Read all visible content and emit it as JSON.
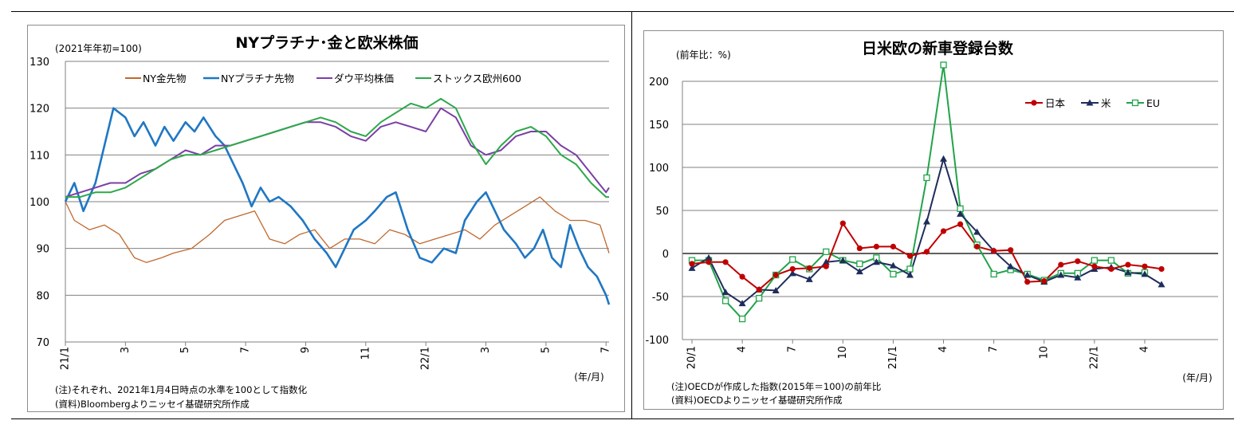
{
  "chart_data": [
    {
      "type": "line",
      "title": "NYプラチナ･金と欧米株価",
      "ylabel": "(2021年年初=100)",
      "xlabel": "(年/月)",
      "ylim": [
        70,
        130
      ],
      "yticks": [
        "130",
        "120",
        "110",
        "100",
        "90",
        "80",
        "70"
      ],
      "xticks": [
        "21/1",
        "3",
        "5",
        "7",
        "9",
        "11",
        "22/1",
        "3",
        "5",
        "7"
      ],
      "grid": true,
      "legend_position": "top",
      "note": "(注)それぞれ、2021年1月4日時点の水準を100として指数化",
      "source": "(資料)Bloombergよりニッセイ基礎研究所作成",
      "series": [
        {
          "name": "NY金先物",
          "color": "#c0692e",
          "x": [
            0,
            0.3,
            0.8,
            1.3,
            1.8,
            2.3,
            2.7,
            3.2,
            3.6,
            4.2,
            4.8,
            5.3,
            5.8,
            6.3,
            6.8,
            7.3,
            7.8,
            8.3,
            8.8,
            9.3,
            9.8,
            10.3,
            10.8,
            11.3,
            11.8,
            12.3,
            12.8,
            13.3,
            13.8,
            14.3,
            14.8,
            15.3,
            15.8,
            16.3,
            16.8,
            17.3,
            17.8,
            18.1
          ],
          "values": [
            100,
            96,
            94,
            95,
            93,
            88,
            87,
            88,
            89,
            90,
            93,
            96,
            97,
            98,
            92,
            91,
            93,
            94,
            90,
            92,
            92,
            91,
            94,
            93,
            91,
            92,
            93,
            94,
            92,
            95,
            97,
            99,
            101,
            98,
            96,
            96,
            95,
            89
          ]
        },
        {
          "name": "NYプラチナ先物",
          "color": "#1f77c4",
          "x": [
            0,
            0.3,
            0.6,
            1.0,
            1.3,
            1.6,
            2.0,
            2.3,
            2.6,
            3.0,
            3.3,
            3.6,
            4.0,
            4.3,
            4.6,
            5.0,
            5.3,
            5.6,
            5.9,
            6.2,
            6.5,
            6.8,
            7.1,
            7.5,
            7.9,
            8.3,
            8.7,
            9.0,
            9.3,
            9.6,
            10.0,
            10.3,
            10.7,
            11.0,
            11.4,
            11.8,
            12.2,
            12.6,
            13.0,
            13.3,
            13.7,
            14.0,
            14.3,
            14.6,
            15.0,
            15.3,
            15.6,
            15.9,
            16.2,
            16.5,
            16.8,
            17.1,
            17.4,
            17.7,
            18.0,
            18.1
          ],
          "values": [
            100,
            104,
            98,
            104,
            112,
            120,
            118,
            114,
            117,
            112,
            116,
            113,
            117,
            115,
            118,
            114,
            112,
            108,
            104,
            99,
            103,
            100,
            101,
            99,
            96,
            92,
            89,
            86,
            90,
            94,
            96,
            98,
            101,
            102,
            94,
            88,
            87,
            90,
            89,
            96,
            100,
            102,
            98,
            94,
            91,
            88,
            90,
            94,
            88,
            86,
            95,
            90,
            86,
            84,
            80,
            78
          ]
        },
        {
          "name": "ダウ平均株価",
          "color": "#7b3fa6",
          "x": [
            0,
            0.5,
            1.0,
            1.5,
            2.0,
            2.5,
            3.0,
            3.5,
            4.0,
            4.5,
            5.0,
            5.5,
            6.0,
            6.5,
            7.0,
            7.5,
            8.0,
            8.5,
            9.0,
            9.5,
            10.0,
            10.5,
            11.0,
            11.5,
            12.0,
            12.5,
            13.0,
            13.5,
            14.0,
            14.5,
            15.0,
            15.5,
            16.0,
            16.5,
            17.0,
            17.5,
            18.0,
            18.1
          ],
          "values": [
            101,
            102,
            103,
            104,
            104,
            106,
            107,
            109,
            111,
            110,
            112,
            112,
            113,
            114,
            115,
            116,
            117,
            117,
            116,
            114,
            113,
            116,
            117,
            116,
            115,
            120,
            118,
            112,
            110,
            111,
            114,
            115,
            115,
            112,
            110,
            106,
            102,
            103
          ]
        },
        {
          "name": "ストックス欧州600",
          "color": "#2ca84a",
          "x": [
            0,
            0.5,
            1.0,
            1.5,
            2.0,
            2.5,
            3.0,
            3.5,
            4.0,
            4.5,
            5.0,
            5.5,
            6.0,
            6.5,
            7.0,
            7.5,
            8.0,
            8.5,
            9.0,
            9.5,
            10.0,
            10.5,
            11.0,
            11.5,
            12.0,
            12.5,
            13.0,
            13.5,
            14.0,
            14.5,
            15.0,
            15.5,
            16.0,
            16.5,
            17.0,
            17.5,
            18.0,
            18.1
          ],
          "values": [
            101,
            101,
            102,
            102,
            103,
            105,
            107,
            109,
            110,
            110,
            111,
            112,
            113,
            114,
            115,
            116,
            117,
            118,
            117,
            115,
            114,
            117,
            119,
            121,
            120,
            122,
            120,
            113,
            108,
            112,
            115,
            116,
            114,
            110,
            108,
            104,
            101,
            101
          ]
        }
      ]
    },
    {
      "type": "line",
      "title": "日米欧の新車登録台数",
      "ylabel": "(前年比：%)",
      "xlabel": "(年/月)",
      "ylim": [
        -100,
        200
      ],
      "yticks": [
        "200",
        "150",
        "100",
        "50",
        "0",
        "-50",
        "-100"
      ],
      "xticks": [
        "20/1",
        "4",
        "7",
        "10",
        "21/1",
        "4",
        "7",
        "10",
        "22/1",
        "4"
      ],
      "grid": true,
      "legend_position": "top-right",
      "note": "(注)OECDが作成した指数(2015年＝100)の前年比",
      "source": "(資料)OECDよりニッセイ基礎研究所作成",
      "series": [
        {
          "name": "日本",
          "color": "#c00000",
          "marker": "circle",
          "values": [
            -12,
            -10,
            -10,
            -27,
            -42,
            -25,
            -18,
            -17,
            -15,
            35,
            6,
            8,
            8,
            -3,
            2,
            26,
            34,
            8,
            3,
            4,
            -33,
            -32,
            -13,
            -9,
            -15,
            -18,
            -13,
            -15,
            -18
          ]
        },
        {
          "name": "米",
          "color": "#1f2d5c",
          "marker": "triangle",
          "values": [
            -17,
            -5,
            -45,
            -58,
            -42,
            -43,
            -23,
            -30,
            -10,
            -8,
            -21,
            -10,
            -14,
            -25,
            37,
            110,
            46,
            25,
            3,
            -15,
            -25,
            -33,
            -25,
            -28,
            -18,
            -16,
            -22,
            -24,
            -36
          ]
        },
        {
          "name": "EU",
          "color": "#22a34a",
          "marker": "square",
          "values": [
            -8,
            -8,
            -55,
            -76,
            -52,
            -25,
            -7,
            -18,
            2,
            -8,
            -12,
            -5,
            -24,
            -18,
            88,
            219,
            52,
            10,
            -24,
            -19,
            -24,
            -31,
            -23,
            -23,
            -8,
            -8,
            -23,
            -22,
            null
          ]
        }
      ]
    }
  ]
}
